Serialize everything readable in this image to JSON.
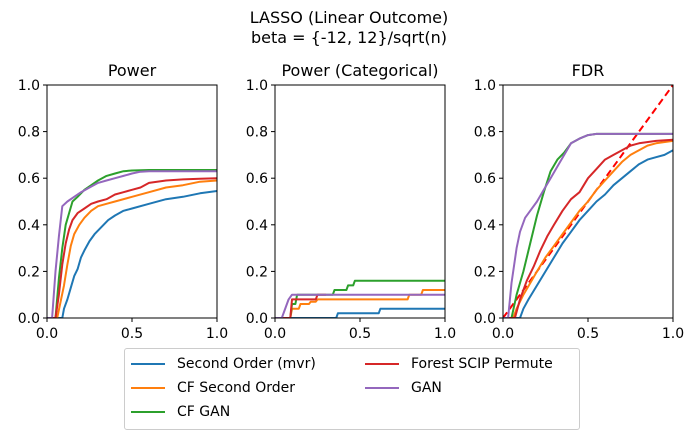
{
  "figure": {
    "suptitle_line1": "LASSO (Linear Outcome)",
    "suptitle_line2": "beta = {-12, 12}/sqrt(n)"
  },
  "legend": [
    {
      "name": "Second Order (mvr)",
      "color": "#1f77b4"
    },
    {
      "name": "CF Second Order",
      "color": "#ff7f0e"
    },
    {
      "name": "CF GAN",
      "color": "#2ca02c"
    },
    {
      "name": "Forest SCIP Permute",
      "color": "#d62728"
    },
    {
      "name": "GAN",
      "color": "#9467bd"
    }
  ],
  "chart_data": [
    {
      "type": "line",
      "title": "Power",
      "xlabel": "",
      "ylabel": "",
      "xlim": [
        0,
        1
      ],
      "ylim": [
        0,
        1
      ],
      "xticks": [
        "0.0",
        "0.5",
        "1.0"
      ],
      "yticks": [
        "0.0",
        "0.2",
        "0.4",
        "0.6",
        "0.8",
        "1.0"
      ],
      "grid": false,
      "series": [
        {
          "name": "Second Order (mvr)",
          "color": "#1f77b4",
          "x": [
            0,
            0.09,
            0.1,
            0.12,
            0.14,
            0.16,
            0.18,
            0.2,
            0.22,
            0.25,
            0.28,
            0.32,
            0.36,
            0.4,
            0.45,
            0.5,
            0.6,
            0.7,
            0.8,
            0.9,
            1.0
          ],
          "y": [
            0,
            0,
            0.04,
            0.08,
            0.13,
            0.18,
            0.21,
            0.26,
            0.29,
            0.33,
            0.36,
            0.39,
            0.42,
            0.44,
            0.46,
            0.47,
            0.49,
            0.51,
            0.52,
            0.535,
            0.545
          ]
        },
        {
          "name": "CF Second Order",
          "color": "#ff7f0e",
          "x": [
            0,
            0.06,
            0.08,
            0.1,
            0.12,
            0.14,
            0.16,
            0.19,
            0.22,
            0.26,
            0.3,
            0.35,
            0.4,
            0.5,
            0.6,
            0.7,
            0.8,
            0.9,
            1.0
          ],
          "y": [
            0,
            0,
            0.07,
            0.14,
            0.23,
            0.31,
            0.36,
            0.4,
            0.43,
            0.46,
            0.48,
            0.49,
            0.5,
            0.52,
            0.54,
            0.56,
            0.57,
            0.585,
            0.59
          ]
        },
        {
          "name": "CF GAN",
          "color": "#2ca02c",
          "x": [
            0,
            0.05,
            0.07,
            0.09,
            0.11,
            0.13,
            0.15,
            0.18,
            0.22,
            0.26,
            0.3,
            0.35,
            0.4,
            0.45,
            0.5,
            0.6,
            1.0
          ],
          "y": [
            0,
            0,
            0.17,
            0.3,
            0.4,
            0.45,
            0.5,
            0.52,
            0.55,
            0.57,
            0.59,
            0.61,
            0.62,
            0.63,
            0.633,
            0.635,
            0.635
          ]
        },
        {
          "name": "Forest SCIP Permute",
          "color": "#d62728",
          "x": [
            0,
            0.05,
            0.07,
            0.09,
            0.11,
            0.13,
            0.15,
            0.18,
            0.22,
            0.26,
            0.3,
            0.35,
            0.4,
            0.45,
            0.5,
            0.55,
            0.6,
            0.7,
            0.8,
            0.9,
            1.0
          ],
          "y": [
            0,
            0,
            0.1,
            0.23,
            0.32,
            0.38,
            0.42,
            0.45,
            0.47,
            0.49,
            0.5,
            0.51,
            0.53,
            0.54,
            0.55,
            0.56,
            0.58,
            0.59,
            0.595,
            0.598,
            0.6
          ]
        },
        {
          "name": "GAN",
          "color": "#9467bd",
          "x": [
            0,
            0.03,
            0.05,
            0.07,
            0.09,
            0.12,
            0.16,
            0.2,
            0.25,
            0.3,
            0.35,
            0.4,
            0.45,
            0.5,
            0.55,
            0.6,
            1.0
          ],
          "y": [
            0,
            0,
            0.2,
            0.35,
            0.48,
            0.5,
            0.52,
            0.54,
            0.56,
            0.58,
            0.59,
            0.6,
            0.61,
            0.62,
            0.628,
            0.63,
            0.63
          ]
        }
      ]
    },
    {
      "type": "line",
      "title": "Power (Categorical)",
      "xlabel": "",
      "ylabel": "",
      "xlim": [
        0,
        1
      ],
      "ylim": [
        0,
        1
      ],
      "xticks": [
        "0.0",
        "0.5",
        "1.0"
      ],
      "yticks": [
        "0.0",
        "0.2",
        "0.4",
        "0.6",
        "0.8",
        "1.0"
      ],
      "grid": false,
      "series": [
        {
          "name": "Second Order (mvr)",
          "color": "#1f77b4",
          "x": [
            0,
            0.36,
            0.37,
            0.61,
            0.62,
            1.0
          ],
          "y": [
            0,
            0,
            0.02,
            0.02,
            0.04,
            0.04
          ]
        },
        {
          "name": "CF Second Order",
          "color": "#ff7f0e",
          "x": [
            0,
            0.09,
            0.1,
            0.14,
            0.15,
            0.2,
            0.21,
            0.24,
            0.25,
            0.78,
            0.79,
            0.86,
            0.87,
            1.0
          ],
          "y": [
            0,
            0,
            0.04,
            0.04,
            0.06,
            0.06,
            0.07,
            0.07,
            0.08,
            0.08,
            0.1,
            0.1,
            0.12,
            0.12
          ]
        },
        {
          "name": "CF GAN",
          "color": "#2ca02c",
          "x": [
            0,
            0.09,
            0.1,
            0.12,
            0.13,
            0.34,
            0.35,
            0.42,
            0.43,
            0.46,
            0.47,
            1.0
          ],
          "y": [
            0,
            0,
            0.06,
            0.06,
            0.1,
            0.1,
            0.12,
            0.12,
            0.14,
            0.14,
            0.16,
            0.16
          ]
        },
        {
          "name": "Forest SCIP Permute",
          "color": "#d62728",
          "x": [
            0,
            0.09,
            0.1,
            0.24,
            0.25,
            0.3
          ],
          "y": [
            0,
            0,
            0.08,
            0.08,
            0.1,
            0.1
          ]
        },
        {
          "name": "GAN",
          "color": "#9467bd",
          "x": [
            0,
            0.04,
            0.08,
            0.1,
            1.0
          ],
          "y": [
            0,
            0,
            0.08,
            0.1,
            0.1
          ]
        }
      ]
    },
    {
      "type": "line",
      "title": "FDR",
      "xlabel": "",
      "ylabel": "",
      "xlim": [
        0,
        1
      ],
      "ylim": [
        0,
        1
      ],
      "xticks": [
        "0.0",
        "0.5",
        "1.0"
      ],
      "yticks": [
        "0.0",
        "0.2",
        "0.4",
        "0.6",
        "0.8",
        "1.0"
      ],
      "grid": false,
      "reference_line": {
        "name": "y = x",
        "color": "#ff0000",
        "style": "dashed",
        "x": [
          0,
          1
        ],
        "y": [
          0,
          1
        ]
      },
      "series": [
        {
          "name": "Second Order (mvr)",
          "color": "#1f77b4",
          "x": [
            0,
            0.1,
            0.12,
            0.15,
            0.2,
            0.25,
            0.3,
            0.35,
            0.4,
            0.45,
            0.5,
            0.55,
            0.6,
            0.65,
            0.7,
            0.75,
            0.8,
            0.85,
            0.9,
            0.95,
            1.0
          ],
          "y": [
            0,
            0,
            0.04,
            0.08,
            0.14,
            0.2,
            0.26,
            0.32,
            0.37,
            0.42,
            0.46,
            0.5,
            0.53,
            0.57,
            0.6,
            0.63,
            0.66,
            0.68,
            0.69,
            0.7,
            0.72
          ]
        },
        {
          "name": "CF Second Order",
          "color": "#ff7f0e",
          "x": [
            0,
            0.06,
            0.08,
            0.12,
            0.16,
            0.2,
            0.25,
            0.3,
            0.35,
            0.4,
            0.45,
            0.5,
            0.55,
            0.6,
            0.65,
            0.7,
            0.75,
            0.8,
            0.85,
            0.9,
            1.0
          ],
          "y": [
            0,
            0,
            0.04,
            0.1,
            0.15,
            0.2,
            0.26,
            0.31,
            0.36,
            0.41,
            0.46,
            0.5,
            0.55,
            0.59,
            0.63,
            0.67,
            0.7,
            0.72,
            0.74,
            0.75,
            0.76
          ]
        },
        {
          "name": "CF GAN",
          "color": "#2ca02c",
          "x": [
            0,
            0.05,
            0.08,
            0.12,
            0.16,
            0.2,
            0.24,
            0.28,
            0.32,
            0.36,
            0.4,
            0.45,
            0.5,
            0.55,
            0.6,
            1.0
          ],
          "y": [
            0,
            0,
            0.1,
            0.2,
            0.32,
            0.44,
            0.54,
            0.63,
            0.68,
            0.71,
            0.75,
            0.77,
            0.785,
            0.79,
            0.79,
            0.79
          ]
        },
        {
          "name": "Forest SCIP Permute",
          "color": "#d62728",
          "x": [
            0,
            0.07,
            0.1,
            0.14,
            0.18,
            0.22,
            0.26,
            0.3,
            0.35,
            0.4,
            0.45,
            0.5,
            0.55,
            0.6,
            0.65,
            0.7,
            0.75,
            0.8,
            0.9,
            1.0
          ],
          "y": [
            0,
            0,
            0.08,
            0.16,
            0.22,
            0.29,
            0.35,
            0.4,
            0.46,
            0.51,
            0.54,
            0.6,
            0.64,
            0.68,
            0.7,
            0.72,
            0.74,
            0.75,
            0.76,
            0.765
          ]
        },
        {
          "name": "GAN",
          "color": "#9467bd",
          "x": [
            0,
            0.03,
            0.05,
            0.08,
            0.1,
            0.13,
            0.16,
            0.2,
            0.24,
            0.28,
            0.32,
            0.36,
            0.4,
            0.45,
            0.5,
            0.55,
            0.6,
            1.0
          ],
          "y": [
            0,
            0,
            0.15,
            0.3,
            0.37,
            0.43,
            0.46,
            0.5,
            0.55,
            0.6,
            0.65,
            0.7,
            0.75,
            0.77,
            0.785,
            0.79,
            0.79,
            0.79
          ]
        }
      ]
    }
  ]
}
